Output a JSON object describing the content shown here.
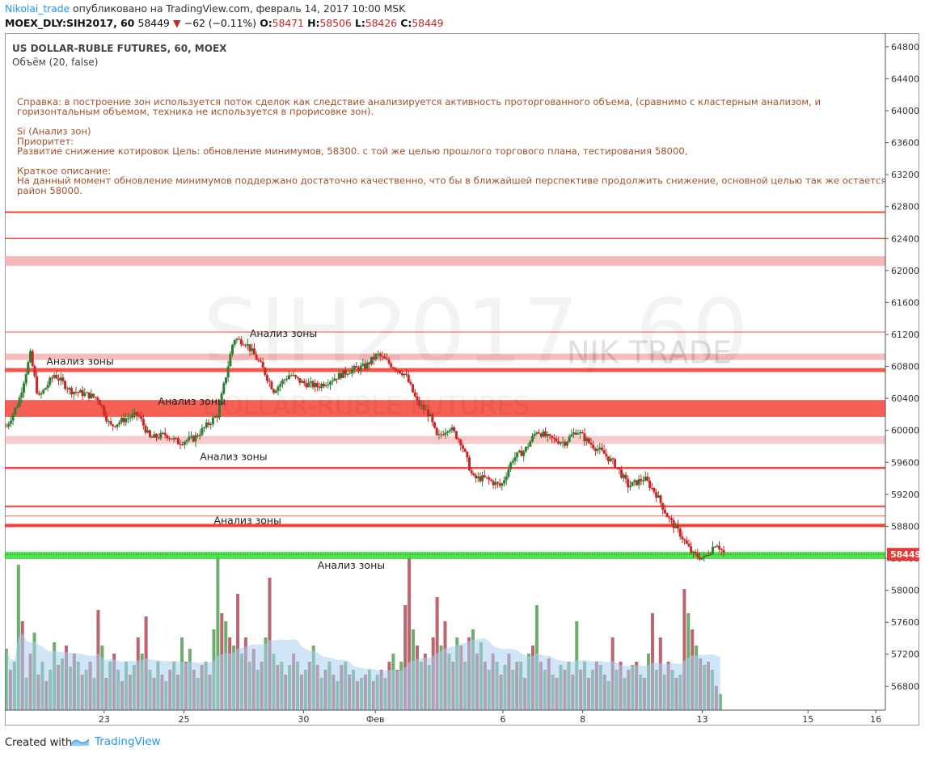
{
  "header": {
    "author": "Nikolai_trade",
    "published": "опубликовано на TradingView.com, февраль 14, 2017 10:00 MSK",
    "symbol": "MOEX_DLY:SIH2017, 60",
    "last": "58449",
    "change": "−62 (−0.11%)",
    "o_label": "O:",
    "o": "58471",
    "h_label": "H:",
    "h": "58506",
    "l_label": "L:",
    "l": "58426",
    "c_label": "C:",
    "c": "58449"
  },
  "legend": {
    "title": "US DOLLAR-RUBLE FUTURES, 60, MOEX",
    "indicator": "Объём (20, false)"
  },
  "note_lines": [
    "Справка: в построение зон используется поток сделок как следствие анализируется активность проторгованного объема, (сравнимо с кластерным анализом, и",
    "горизонтальным объемом, техника не используется в прорисовке зон).",
    "",
    "Si (Анализ зон)",
    "Приоритет:",
    "Развитие снижение котировок  Цель: обновление минимумов, 58300. с той же целью прошлого торгового плана, тестирования 58000,",
    "",
    "Краткое описание:",
    "На данный момент обновление минимумов поддержано достаточно качественно, что бы в ближайшей перспективе продолжить снижение, основной целью так же остается",
    "район 58000."
  ],
  "watermark": {
    "big": "SIH2017, 60",
    "small": "NIK TRADE",
    "sub": "DOLLAR-RUBLE FUTURES"
  },
  "zone_labels": [
    {
      "text": "Анализ зоны",
      "t": 1.0,
      "price": 60820
    },
    {
      "text": "Анализ зоны",
      "t": 6.1,
      "price": 61170
    },
    {
      "text": "Анализ зоны",
      "t": 3.8,
      "price": 60320
    },
    {
      "text": "Анализ зоны",
      "t": 4.85,
      "price": 59630
    },
    {
      "text": "Анализ зоны",
      "t": 5.2,
      "price": 58830
    },
    {
      "text": "Анализ зоны",
      "t": 7.8,
      "price": 58270
    }
  ],
  "y_ticks": [
    "64800",
    "64400",
    "64000",
    "63600",
    "63200",
    "62800",
    "62400",
    "62000",
    "61600",
    "61200",
    "60800",
    "60400",
    "60000",
    "59600",
    "59200",
    "58800",
    "58400",
    "58000",
    "57600",
    "57200",
    "56800"
  ],
  "x_ticks": [
    {
      "label": "23",
      "t": 2.45
    },
    {
      "label": "25",
      "t": 4.45
    },
    {
      "label": "30",
      "t": 7.45
    },
    {
      "label": "Фев",
      "t": 9.25
    },
    {
      "label": "6",
      "t": 12.45
    },
    {
      "label": "8",
      "t": 14.45
    },
    {
      "label": "13",
      "t": 17.45
    },
    {
      "label": "15",
      "t": 20.1
    },
    {
      "label": "16",
      "t": 21.8
    }
  ],
  "last_price_label": "58449",
  "last_price": 58449,
  "chart_data": {
    "type": "candlestick",
    "title": "US DOLLAR-RUBLE FUTURES, 60, MOEX",
    "ylim": [
      56500,
      64950
    ],
    "price_series": [
      [
        0,
        60050
      ],
      [
        0.3,
        60350
      ],
      [
        0.6,
        60950
      ],
      [
        0.8,
        60400
      ],
      [
        1.2,
        60700
      ],
      [
        1.6,
        60500
      ],
      [
        2.0,
        60450
      ],
      [
        2.3,
        60400
      ],
      [
        2.6,
        60050
      ],
      [
        3.0,
        60150
      ],
      [
        3.3,
        60200
      ],
      [
        3.6,
        59900
      ],
      [
        4.0,
        59950
      ],
      [
        4.3,
        59850
      ],
      [
        4.7,
        59900
      ],
      [
        5.0,
        60050
      ],
      [
        5.3,
        60200
      ],
      [
        5.7,
        61150
      ],
      [
        6.0,
        61100
      ],
      [
        6.4,
        60800
      ],
      [
        6.7,
        60500
      ],
      [
        7.1,
        60700
      ],
      [
        7.4,
        60600
      ],
      [
        7.8,
        60550
      ],
      [
        8.2,
        60650
      ],
      [
        8.6,
        60750
      ],
      [
        9.0,
        60800
      ],
      [
        9.3,
        60950
      ],
      [
        9.7,
        60800
      ],
      [
        10.0,
        60700
      ],
      [
        10.3,
        60350
      ],
      [
        10.6,
        60200
      ],
      [
        10.8,
        59900
      ],
      [
        11.1,
        60050
      ],
      [
        11.4,
        59850
      ],
      [
        11.7,
        59400
      ],
      [
        12.0,
        59400
      ],
      [
        12.4,
        59300
      ],
      [
        12.7,
        59650
      ],
      [
        13.0,
        59750
      ],
      [
        13.3,
        60000
      ],
      [
        13.6,
        59900
      ],
      [
        14.0,
        59850
      ],
      [
        14.3,
        60000
      ],
      [
        14.6,
        59850
      ],
      [
        15.0,
        59700
      ],
      [
        15.3,
        59550
      ],
      [
        15.6,
        59300
      ],
      [
        16.0,
        59400
      ],
      [
        16.3,
        59200
      ],
      [
        16.6,
        58900
      ],
      [
        16.9,
        58700
      ],
      [
        17.2,
        58450
      ],
      [
        17.5,
        58400
      ],
      [
        17.8,
        58600
      ],
      [
        18.0,
        58450
      ]
    ],
    "volume": {
      "name": "Объём (20, false)",
      "series": [
        [
          0,
          "u",
          0.38
        ],
        [
          0.1,
          "d",
          0.25
        ],
        [
          0.2,
          "u",
          0.3
        ],
        [
          0.3,
          "u",
          0.9
        ],
        [
          0.4,
          "d",
          0.55
        ],
        [
          0.5,
          "u",
          0.2
        ],
        [
          0.6,
          "d",
          0.35
        ],
        [
          0.7,
          "u",
          0.48
        ],
        [
          0.8,
          "d",
          0.22
        ],
        [
          0.9,
          "u",
          0.3
        ],
        [
          1.0,
          "d",
          0.18
        ],
        [
          1.1,
          "u",
          0.25
        ],
        [
          1.2,
          "u",
          0.42
        ],
        [
          1.3,
          "d",
          0.28
        ],
        [
          1.4,
          "u",
          0.32
        ],
        [
          1.5,
          "d",
          0.4
        ],
        [
          1.6,
          "u",
          0.27
        ],
        [
          1.7,
          "d",
          0.35
        ],
        [
          1.8,
          "u",
          0.3
        ],
        [
          1.9,
          "d",
          0.22
        ],
        [
          2.0,
          "u",
          0.25
        ],
        [
          2.1,
          "d",
          0.3
        ],
        [
          2.2,
          "u",
          0.2
        ],
        [
          2.3,
          "d",
          0.62
        ],
        [
          2.4,
          "u",
          0.4
        ],
        [
          2.5,
          "d",
          0.2
        ],
        [
          2.6,
          "u",
          0.3
        ],
        [
          2.7,
          "d",
          0.35
        ],
        [
          2.8,
          "u",
          0.25
        ],
        [
          2.9,
          "d",
          0.18
        ],
        [
          3.0,
          "u",
          0.3
        ],
        [
          3.1,
          "d",
          0.22
        ],
        [
          3.2,
          "u",
          0.28
        ],
        [
          3.3,
          "d",
          0.45
        ],
        [
          3.4,
          "u",
          0.35
        ],
        [
          3.5,
          "d",
          0.58
        ],
        [
          3.6,
          "u",
          0.25
        ],
        [
          3.7,
          "d",
          0.2
        ],
        [
          3.8,
          "u",
          0.3
        ],
        [
          3.9,
          "d",
          0.22
        ],
        [
          4.0,
          "u",
          0.18
        ],
        [
          4.1,
          "d",
          0.25
        ],
        [
          4.2,
          "u",
          0.3
        ],
        [
          4.3,
          "d",
          0.22
        ],
        [
          4.4,
          "u",
          0.45
        ],
        [
          4.5,
          "d",
          0.3
        ],
        [
          4.6,
          "u",
          0.38
        ],
        [
          4.7,
          "d",
          0.25
        ],
        [
          4.8,
          "u",
          0.2
        ],
        [
          4.9,
          "d",
          0.28
        ],
        [
          5.0,
          "u",
          0.3
        ],
        [
          5.1,
          "d",
          0.22
        ],
        [
          5.2,
          "u",
          0.5
        ],
        [
          5.3,
          "u",
          0.95
        ],
        [
          5.4,
          "d",
          0.6
        ],
        [
          5.5,
          "u",
          0.55
        ],
        [
          5.6,
          "d",
          0.45
        ],
        [
          5.7,
          "u",
          0.4
        ],
        [
          5.8,
          "d",
          0.72
        ],
        [
          5.9,
          "u",
          0.35
        ],
        [
          6.0,
          "d",
          0.45
        ],
        [
          6.1,
          "u",
          0.3
        ],
        [
          6.2,
          "d",
          0.38
        ],
        [
          6.3,
          "u",
          0.25
        ],
        [
          6.4,
          "d",
          0.3
        ],
        [
          6.5,
          "u",
          0.45
        ],
        [
          6.6,
          "d",
          0.82
        ],
        [
          6.7,
          "u",
          0.35
        ],
        [
          6.8,
          "d",
          0.28
        ],
        [
          6.9,
          "u",
          0.3
        ],
        [
          7.0,
          "d",
          0.22
        ],
        [
          7.1,
          "u",
          0.28
        ],
        [
          7.2,
          "d",
          0.35
        ],
        [
          7.3,
          "u",
          0.3
        ],
        [
          7.4,
          "d",
          0.22
        ],
        [
          7.5,
          "u",
          0.25
        ],
        [
          7.6,
          "d",
          0.3
        ],
        [
          7.7,
          "u",
          0.4
        ],
        [
          7.8,
          "d",
          0.28
        ],
        [
          7.9,
          "u",
          0.2
        ],
        [
          8.0,
          "d",
          0.25
        ],
        [
          8.1,
          "u",
          0.3
        ],
        [
          8.2,
          "d",
          0.22
        ],
        [
          8.3,
          "u",
          0.18
        ],
        [
          8.4,
          "d",
          0.28
        ],
        [
          8.5,
          "u",
          0.3
        ],
        [
          8.6,
          "d",
          0.22
        ],
        [
          8.7,
          "u",
          0.25
        ],
        [
          8.8,
          "d",
          0.18
        ],
        [
          8.9,
          "u",
          0.2
        ],
        [
          9.0,
          "d",
          0.22
        ],
        [
          9.1,
          "u",
          0.25
        ],
        [
          9.2,
          "d",
          0.18
        ],
        [
          9.3,
          "u",
          0.22
        ],
        [
          9.4,
          "d",
          0.25
        ],
        [
          9.5,
          "u",
          0.2
        ],
        [
          9.6,
          "d",
          0.3
        ],
        [
          9.7,
          "u",
          0.35
        ],
        [
          9.8,
          "d",
          0.25
        ],
        [
          9.9,
          "u",
          0.3
        ],
        [
          10.0,
          "d",
          0.65
        ],
        [
          10.1,
          "d",
          0.95
        ],
        [
          10.2,
          "u",
          0.5
        ],
        [
          10.3,
          "d",
          0.4
        ],
        [
          10.4,
          "u",
          0.3
        ],
        [
          10.5,
          "d",
          0.35
        ],
        [
          10.6,
          "u",
          0.28
        ],
        [
          10.7,
          "d",
          0.45
        ],
        [
          10.8,
          "d",
          0.7
        ],
        [
          10.9,
          "u",
          0.4
        ],
        [
          11.0,
          "d",
          0.55
        ],
        [
          11.1,
          "u",
          0.35
        ],
        [
          11.2,
          "d",
          0.3
        ],
        [
          11.3,
          "u",
          0.45
        ],
        [
          11.4,
          "d",
          0.4
        ],
        [
          11.5,
          "u",
          0.3
        ],
        [
          11.6,
          "d",
          0.45
        ],
        [
          11.7,
          "u",
          0.5
        ],
        [
          11.8,
          "d",
          0.35
        ],
        [
          11.9,
          "u",
          0.42
        ],
        [
          12.0,
          "d",
          0.3
        ],
        [
          12.1,
          "u",
          0.25
        ],
        [
          12.2,
          "d",
          0.35
        ],
        [
          12.3,
          "u",
          0.3
        ],
        [
          12.4,
          "d",
          0.22
        ],
        [
          12.5,
          "u",
          0.28
        ],
        [
          12.6,
          "d",
          0.35
        ],
        [
          12.7,
          "u",
          0.25
        ],
        [
          12.8,
          "d",
          0.3
        ],
        [
          12.9,
          "u",
          0.3
        ],
        [
          13.0,
          "d",
          0.2
        ],
        [
          13.1,
          "u",
          0.35
        ],
        [
          13.2,
          "d",
          0.4
        ],
        [
          13.3,
          "u",
          0.65
        ],
        [
          13.4,
          "d",
          0.3
        ],
        [
          13.5,
          "u",
          0.25
        ],
        [
          13.6,
          "d",
          0.32
        ],
        [
          13.7,
          "u",
          0.22
        ],
        [
          13.8,
          "d",
          0.2
        ],
        [
          13.9,
          "u",
          0.28
        ],
        [
          14.0,
          "d",
          0.25
        ],
        [
          14.1,
          "u",
          0.3
        ],
        [
          14.2,
          "d",
          0.22
        ],
        [
          14.3,
          "u",
          0.55
        ],
        [
          14.4,
          "d",
          0.25
        ],
        [
          14.5,
          "u",
          0.3
        ],
        [
          14.6,
          "d",
          0.2
        ],
        [
          14.7,
          "u",
          0.25
        ],
        [
          14.8,
          "d",
          0.3
        ],
        [
          14.9,
          "u",
          0.28
        ],
        [
          15.0,
          "d",
          0.22
        ],
        [
          15.1,
          "u",
          0.18
        ],
        [
          15.2,
          "d",
          0.45
        ],
        [
          15.3,
          "u",
          0.25
        ],
        [
          15.4,
          "d",
          0.3
        ],
        [
          15.5,
          "u",
          0.2
        ],
        [
          15.6,
          "d",
          0.25
        ],
        [
          15.7,
          "u",
          0.28
        ],
        [
          15.8,
          "d",
          0.3
        ],
        [
          15.9,
          "u",
          0.22
        ],
        [
          16.0,
          "d",
          0.2
        ],
        [
          16.1,
          "u",
          0.35
        ],
        [
          16.2,
          "d",
          0.6
        ],
        [
          16.3,
          "u",
          0.25
        ],
        [
          16.4,
          "d",
          0.45
        ],
        [
          16.5,
          "u",
          0.22
        ],
        [
          16.6,
          "d",
          0.3
        ],
        [
          16.7,
          "u",
          0.25
        ],
        [
          16.8,
          "d",
          0.2
        ],
        [
          16.9,
          "u",
          0.22
        ],
        [
          17.0,
          "d",
          0.75
        ],
        [
          17.1,
          "u",
          0.6
        ],
        [
          17.2,
          "d",
          0.5
        ],
        [
          17.3,
          "u",
          0.4
        ],
        [
          17.4,
          "d",
          0.32
        ],
        [
          17.5,
          "u",
          0.28
        ],
        [
          17.6,
          "d",
          0.3
        ],
        [
          17.7,
          "u",
          0.25
        ],
        [
          17.8,
          "d",
          0.15
        ],
        [
          17.9,
          "u",
          0.1
        ]
      ]
    }
  },
  "zones": [
    {
      "type": "line",
      "price": 62730,
      "color": "#f44336",
      "opacity": 1,
      "w": 2
    },
    {
      "type": "line",
      "price": 62400,
      "color": "#f44336",
      "opacity": 1,
      "w": 1.5
    },
    {
      "type": "band",
      "top": 62180,
      "bottom": 62060,
      "color": "#f4a6a6",
      "opacity": 0.8
    },
    {
      "type": "line",
      "price": 61230,
      "color": "#f44336",
      "opacity": 0.8,
      "w": 1.2
    },
    {
      "type": "band",
      "top": 60960,
      "bottom": 60880,
      "color": "#f4a6a6",
      "opacity": 0.75
    },
    {
      "type": "band",
      "top": 60780,
      "bottom": 60730,
      "color": "#f44336",
      "opacity": 0.9
    },
    {
      "type": "band",
      "top": 60380,
      "bottom": 60170,
      "color": "#f44336",
      "opacity": 0.85
    },
    {
      "type": "band",
      "top": 59930,
      "bottom": 59830,
      "color": "#f4a6a6",
      "opacity": 0.6
    },
    {
      "type": "line",
      "price": 59530,
      "color": "#f44336",
      "opacity": 1,
      "w": 2.4
    },
    {
      "type": "line",
      "price": 59050,
      "color": "#f44336",
      "opacity": 1,
      "w": 2
    },
    {
      "type": "line",
      "price": 58930,
      "color": "#f44336",
      "opacity": 0.8,
      "w": 1
    },
    {
      "type": "band",
      "top": 58830,
      "bottom": 58790,
      "color": "#f44336",
      "opacity": 1
    },
    {
      "type": "band",
      "top": 58480,
      "bottom": 58390,
      "color": "#33dd33",
      "opacity": 0.85
    }
  ],
  "footer": {
    "created": "Created with",
    "brand": "TradingView"
  }
}
